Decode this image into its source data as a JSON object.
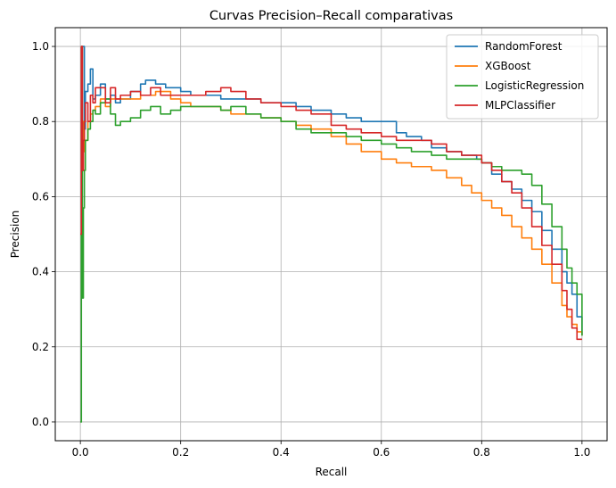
{
  "chart_data": {
    "type": "line",
    "title": "Curvas Precision–Recall comparativas",
    "xlabel": "Recall",
    "ylabel": "Precision",
    "xlim": [
      -0.05,
      1.05
    ],
    "ylim": [
      -0.05,
      1.05
    ],
    "xticks": [
      "0.0",
      "0.2",
      "0.4",
      "0.6",
      "0.8",
      "1.0"
    ],
    "yticks": [
      "0.0",
      "0.2",
      "0.4",
      "0.6",
      "0.8",
      "1.0"
    ],
    "grid": true,
    "legend_position": "top-right",
    "series": [
      {
        "name": "RandomForest",
        "color": "#1f77b4",
        "x": [
          0.0,
          0.003,
          0.006,
          0.008,
          0.01,
          0.015,
          0.02,
          0.025,
          0.03,
          0.04,
          0.05,
          0.06,
          0.07,
          0.08,
          0.1,
          0.12,
          0.13,
          0.15,
          0.17,
          0.19,
          0.2,
          0.22,
          0.25,
          0.28,
          0.3,
          0.33,
          0.36,
          0.4,
          0.43,
          0.46,
          0.5,
          0.53,
          0.56,
          0.6,
          0.63,
          0.65,
          0.68,
          0.7,
          0.73,
          0.76,
          0.79,
          0.8,
          0.82,
          0.84,
          0.86,
          0.88,
          0.9,
          0.92,
          0.94,
          0.96,
          0.97,
          0.98,
          0.99,
          1.0
        ],
        "y": [
          0.5,
          1.0,
          1.0,
          0.78,
          0.88,
          0.9,
          0.94,
          0.86,
          0.87,
          0.9,
          0.86,
          0.87,
          0.85,
          0.86,
          0.88,
          0.9,
          0.91,
          0.9,
          0.89,
          0.89,
          0.88,
          0.87,
          0.87,
          0.86,
          0.86,
          0.86,
          0.85,
          0.85,
          0.84,
          0.83,
          0.82,
          0.81,
          0.8,
          0.8,
          0.77,
          0.76,
          0.75,
          0.73,
          0.72,
          0.71,
          0.7,
          0.69,
          0.66,
          0.64,
          0.62,
          0.59,
          0.56,
          0.51,
          0.46,
          0.4,
          0.37,
          0.34,
          0.28,
          0.23
        ]
      },
      {
        "name": "XGBoost",
        "color": "#ff7f0e",
        "x": [
          0.0,
          0.003,
          0.006,
          0.008,
          0.01,
          0.015,
          0.02,
          0.025,
          0.03,
          0.04,
          0.05,
          0.06,
          0.08,
          0.1,
          0.12,
          0.15,
          0.18,
          0.2,
          0.22,
          0.25,
          0.28,
          0.3,
          0.33,
          0.36,
          0.4,
          0.43,
          0.46,
          0.5,
          0.53,
          0.56,
          0.6,
          0.63,
          0.66,
          0.7,
          0.73,
          0.76,
          0.78,
          0.8,
          0.82,
          0.84,
          0.86,
          0.88,
          0.9,
          0.92,
          0.94,
          0.96,
          0.97,
          0.98,
          0.99,
          1.0
        ],
        "y": [
          0.5,
          0.67,
          0.8,
          0.72,
          0.75,
          0.8,
          0.82,
          0.83,
          0.84,
          0.86,
          0.84,
          0.86,
          0.86,
          0.86,
          0.87,
          0.88,
          0.86,
          0.85,
          0.84,
          0.84,
          0.83,
          0.82,
          0.82,
          0.81,
          0.8,
          0.79,
          0.78,
          0.76,
          0.74,
          0.72,
          0.7,
          0.69,
          0.68,
          0.67,
          0.65,
          0.63,
          0.61,
          0.59,
          0.57,
          0.55,
          0.52,
          0.49,
          0.46,
          0.42,
          0.37,
          0.31,
          0.28,
          0.26,
          0.24,
          0.23
        ]
      },
      {
        "name": "LogisticRegression",
        "color": "#2ca02c",
        "x": [
          0.0,
          0.002,
          0.004,
          0.006,
          0.008,
          0.01,
          0.015,
          0.02,
          0.025,
          0.03,
          0.04,
          0.05,
          0.06,
          0.07,
          0.08,
          0.1,
          0.12,
          0.14,
          0.16,
          0.18,
          0.2,
          0.22,
          0.25,
          0.28,
          0.3,
          0.33,
          0.36,
          0.4,
          0.43,
          0.46,
          0.5,
          0.53,
          0.56,
          0.6,
          0.63,
          0.66,
          0.7,
          0.73,
          0.76,
          0.8,
          0.82,
          0.84,
          0.86,
          0.88,
          0.9,
          0.92,
          0.94,
          0.96,
          0.97,
          0.98,
          0.99,
          1.0
        ],
        "y": [
          0.0,
          1.0,
          0.33,
          0.57,
          0.67,
          0.75,
          0.78,
          0.8,
          0.83,
          0.82,
          0.85,
          0.86,
          0.82,
          0.79,
          0.8,
          0.81,
          0.83,
          0.84,
          0.82,
          0.83,
          0.84,
          0.84,
          0.84,
          0.83,
          0.84,
          0.82,
          0.81,
          0.8,
          0.78,
          0.77,
          0.77,
          0.76,
          0.75,
          0.74,
          0.73,
          0.72,
          0.71,
          0.7,
          0.7,
          0.69,
          0.68,
          0.67,
          0.67,
          0.66,
          0.63,
          0.58,
          0.52,
          0.46,
          0.41,
          0.37,
          0.34,
          0.23
        ]
      },
      {
        "name": "MLPClassifier",
        "color": "#d62728",
        "x": [
          0.0,
          0.002,
          0.004,
          0.006,
          0.008,
          0.01,
          0.015,
          0.02,
          0.025,
          0.03,
          0.04,
          0.05,
          0.06,
          0.07,
          0.08,
          0.1,
          0.12,
          0.14,
          0.16,
          0.18,
          0.2,
          0.22,
          0.25,
          0.28,
          0.3,
          0.33,
          0.36,
          0.4,
          0.43,
          0.46,
          0.5,
          0.53,
          0.56,
          0.6,
          0.63,
          0.66,
          0.7,
          0.73,
          0.76,
          0.8,
          0.82,
          0.84,
          0.86,
          0.88,
          0.9,
          0.92,
          0.94,
          0.96,
          0.97,
          0.98,
          0.99,
          1.0
        ],
        "y": [
          0.5,
          1.0,
          0.67,
          0.75,
          0.8,
          0.85,
          0.8,
          0.87,
          0.85,
          0.89,
          0.89,
          0.85,
          0.89,
          0.86,
          0.87,
          0.88,
          0.87,
          0.89,
          0.87,
          0.87,
          0.87,
          0.87,
          0.88,
          0.89,
          0.88,
          0.86,
          0.85,
          0.84,
          0.83,
          0.82,
          0.79,
          0.78,
          0.77,
          0.76,
          0.75,
          0.75,
          0.74,
          0.72,
          0.71,
          0.69,
          0.67,
          0.64,
          0.61,
          0.57,
          0.52,
          0.47,
          0.42,
          0.35,
          0.3,
          0.25,
          0.22,
          0.22
        ]
      }
    ]
  }
}
